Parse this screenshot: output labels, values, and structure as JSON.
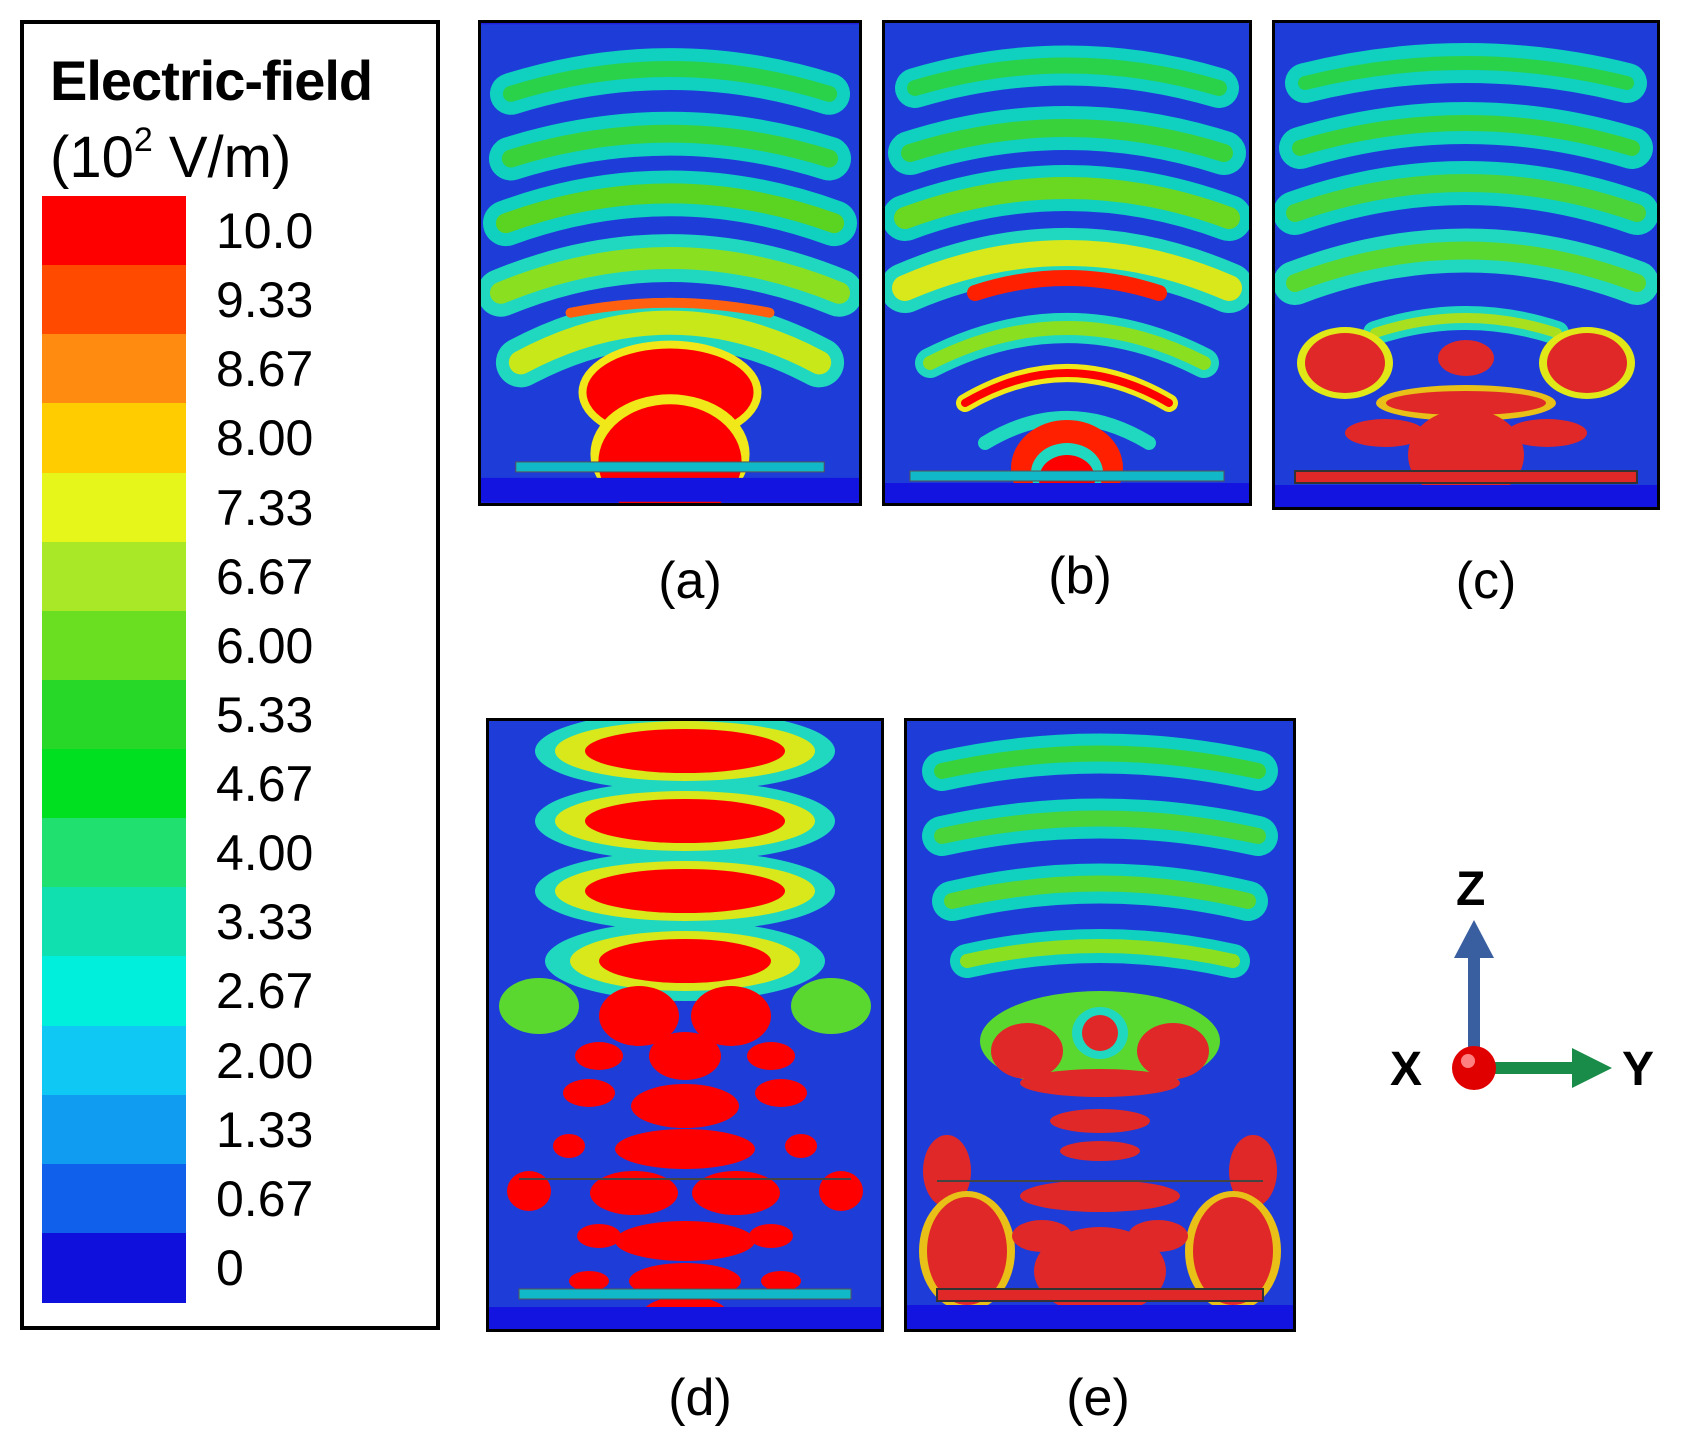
{
  "legend": {
    "title": "Electric-field",
    "unit_prefix": "(10",
    "unit_exp": "2",
    "unit_suffix": " V/m)",
    "ticks": [
      "10.0",
      "9.33",
      "8.67",
      "8.00",
      "7.33",
      "6.67",
      "6.00",
      "5.33",
      "4.67",
      "4.00",
      "3.33",
      "2.67",
      "2.00",
      "1.33",
      "0.67",
      "0"
    ],
    "colors": [
      "#ff0000",
      "#ff4a00",
      "#ff8c10",
      "#ffcc00",
      "#e6f51a",
      "#a8e826",
      "#6ade20",
      "#28d828",
      "#00e020",
      "#20e070",
      "#10e0b0",
      "#00eedc",
      "#10c8f4",
      "#109cf0",
      "#1060ec",
      "#1010dc"
    ]
  },
  "panels": [
    {
      "id": "a",
      "label": "(a)"
    },
    {
      "id": "b",
      "label": "(b)"
    },
    {
      "id": "c",
      "label": "(c)"
    },
    {
      "id": "d",
      "label": "(d)"
    },
    {
      "id": "e",
      "label": "(e)"
    }
  ],
  "axes": {
    "x": "X",
    "y": "Y",
    "z": "Z",
    "x_color": "#e00000",
    "y_color": "#1a8c4a",
    "z_color": "#3a5fa0"
  }
}
